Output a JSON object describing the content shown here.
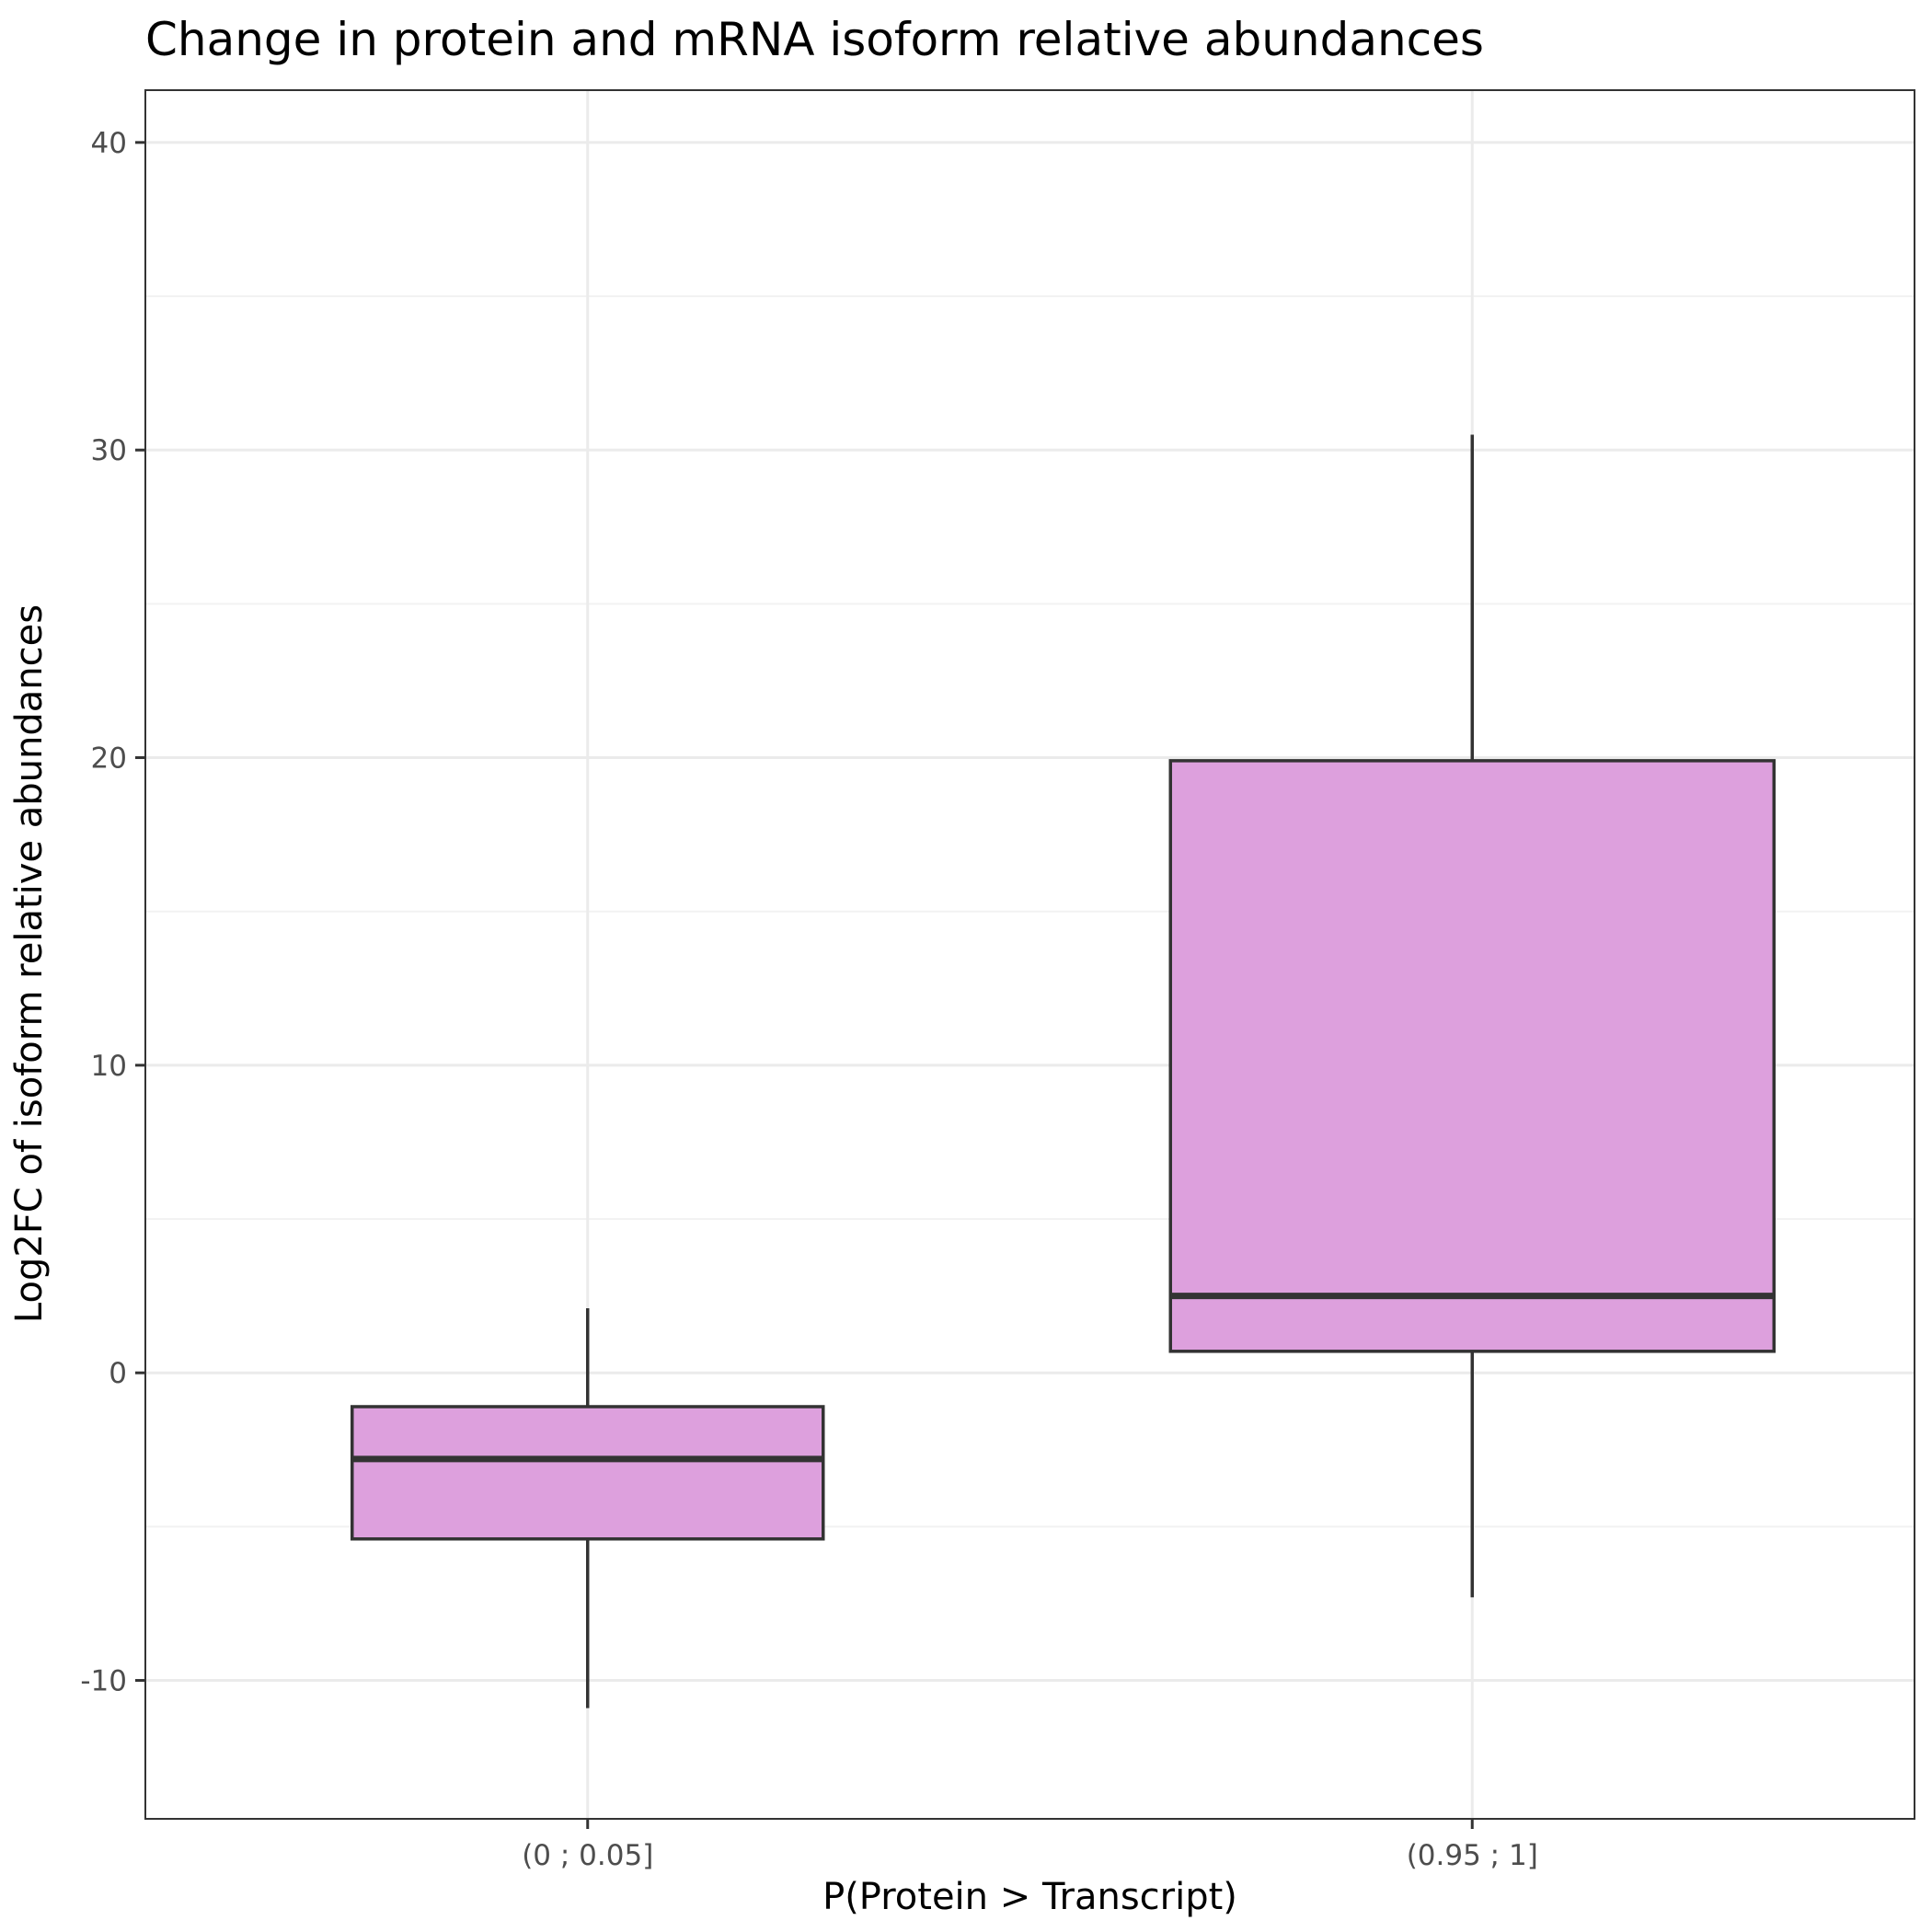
{
  "chart_data": {
    "type": "box",
    "title": "Change in protein and mRNA isoform relative abundances",
    "xlabel": "P(Protein > Transcript)",
    "ylabel": "Log2FC of isoform relative abundances",
    "ylim": [
      -14.5,
      41.7
    ],
    "y_ticks": [
      -10,
      0,
      10,
      20,
      30,
      40
    ],
    "y_tick_labels": [
      "-10",
      "0",
      "10",
      "20",
      "30",
      "40"
    ],
    "categories": [
      "(0 ; 0.05]",
      "(0.95 ; 1]"
    ],
    "boxes": [
      {
        "category": "(0 ; 0.05]",
        "whisker_low": -10.9,
        "q1": -5.4,
        "median": -2.8,
        "q3": -1.1,
        "whisker_high": 2.1
      },
      {
        "category": "(0.95 ; 1]",
        "whisker_low": -7.3,
        "q1": 0.7,
        "median": 2.5,
        "q3": 19.9,
        "whisker_high": 30.5
      }
    ],
    "grid": true,
    "colors": {
      "box_fill": "#dda0dd",
      "box_stroke": "#333333",
      "grid_major": "#ebebeb",
      "grid_minor": "#f2f2f2",
      "panel_border": "#333333",
      "tick_text": "#4d4d4d"
    }
  }
}
